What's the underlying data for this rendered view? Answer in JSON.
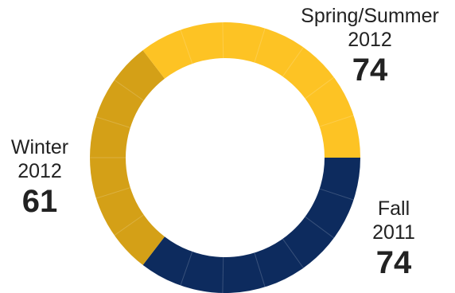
{
  "chart_data": {
    "type": "pie",
    "style": "donut",
    "categories": [
      "Fall 2011",
      "Winter 2012",
      "Spring/Summer 2012"
    ],
    "values": [
      74,
      61,
      74
    ],
    "segments": [
      {
        "name_line1": "Fall",
        "name_line2": "2011",
        "value": 74,
        "value_label": "74",
        "color": "#0d2b5e"
      },
      {
        "name_line1": "Winter",
        "name_line2": "2012",
        "value": 61,
        "value_label": "61",
        "color": "#d4a017"
      },
      {
        "name_line1": "Spring/Summer",
        "name_line2": "2012",
        "value": 74,
        "value_label": "74",
        "color": "#fdc324"
      }
    ],
    "title": "",
    "legend": "none"
  }
}
